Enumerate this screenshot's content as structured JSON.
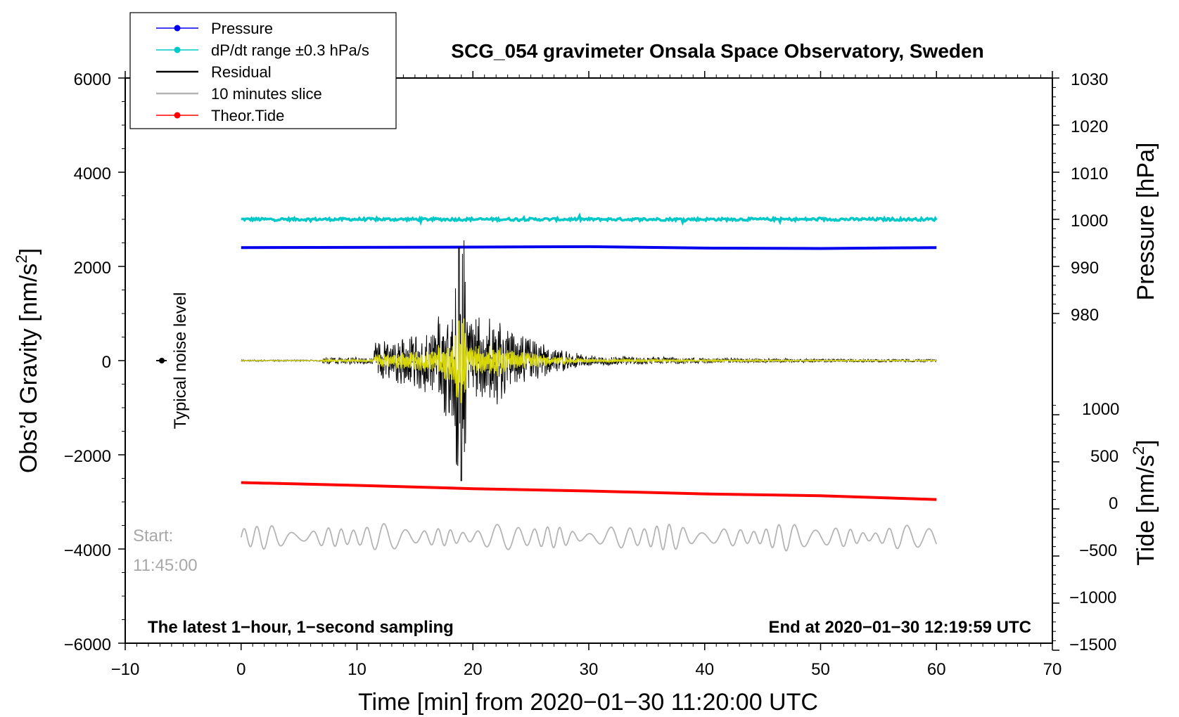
{
  "chart_data": {
    "type": "line",
    "title": "SCG_054 gravimeter Onsala Space Observatory, Sweden",
    "xlabel": "Time [min] from 2020−01−30 11:20:00 UTC",
    "ylabel_left_base": "Obs’d Gravity [nm/s",
    "ylabel_left_sup": "2",
    "ylabel_left_end": "]",
    "ylabel_right_pressure": "Pressure [hPa]",
    "ylabel_right_tide_base": "Tide [nm/s",
    "ylabel_right_tide_sup": "2",
    "ylabel_right_tide_end": "]",
    "xlim": [
      -10,
      70
    ],
    "ylim_left": [
      -6000,
      6000
    ],
    "x_ticks": [
      "−10",
      "0",
      "10",
      "20",
      "30",
      "40",
      "50",
      "60",
      "70"
    ],
    "y_left_ticks": [
      "6000",
      "4000",
      "2000",
      "0",
      "−2000",
      "−4000",
      "−6000"
    ],
    "y_right_pressure_ticks": [
      "1030",
      "1020",
      "1010",
      "1000",
      "990",
      "980"
    ],
    "y_right_tide_ticks": [
      "1000",
      "500",
      "0",
      "−500",
      "−1000",
      "−1500"
    ],
    "legend": [
      {
        "label": "Pressure",
        "color": "#0000ee",
        "marker": true
      },
      {
        "label": "dP/dt range ±0.3 hPa/s",
        "color": "#00c8c8",
        "marker": true
      },
      {
        "label": "Residual",
        "color": "#000000",
        "marker": false
      },
      {
        "label": "10 minutes slice",
        "color": "#b4b4b4",
        "marker": false
      },
      {
        "label": "Theor.Tide",
        "color": "#ff0000",
        "marker": true
      }
    ],
    "series": [
      {
        "name": "Pressure",
        "color": "#0000ee",
        "x": [
          0,
          20,
          30,
          40,
          50,
          60
        ],
        "y_hPa": [
          994,
          994.1,
          994.2,
          993.9,
          993.8,
          994
        ]
      },
      {
        "name": "dP/dt range",
        "color": "#00c8c8",
        "x": [
          0,
          60
        ],
        "y_plot_nm_s2": [
          3000,
          3000
        ]
      },
      {
        "name": "Theor.Tide",
        "color": "#ff0000",
        "x": [
          0,
          10,
          20,
          30,
          40,
          50,
          60
        ],
        "y_nm_s2": [
          280,
          250,
          215,
          190,
          160,
          140,
          100
        ]
      },
      {
        "name": "Residual",
        "color": "#000000",
        "x_range": [
          0,
          60
        ],
        "baseline": 0,
        "peak_min": 2400,
        "peak_max_negative": -2550,
        "peak_time_min": 19
      },
      {
        "name": "10 minutes slice",
        "color": "#b4b4b4",
        "x_range": [
          0,
          60
        ],
        "baseline": -3750
      }
    ],
    "noise_level_label": "Typical noise level",
    "start_label": "Start:",
    "start_time": "11:45:00",
    "note_left": "The latest 1−hour, 1−second sampling",
    "note_right": "End at 2020−01−30 12:19:59 UTC",
    "colors": {
      "residual_overlay": "#d8d800"
    }
  }
}
